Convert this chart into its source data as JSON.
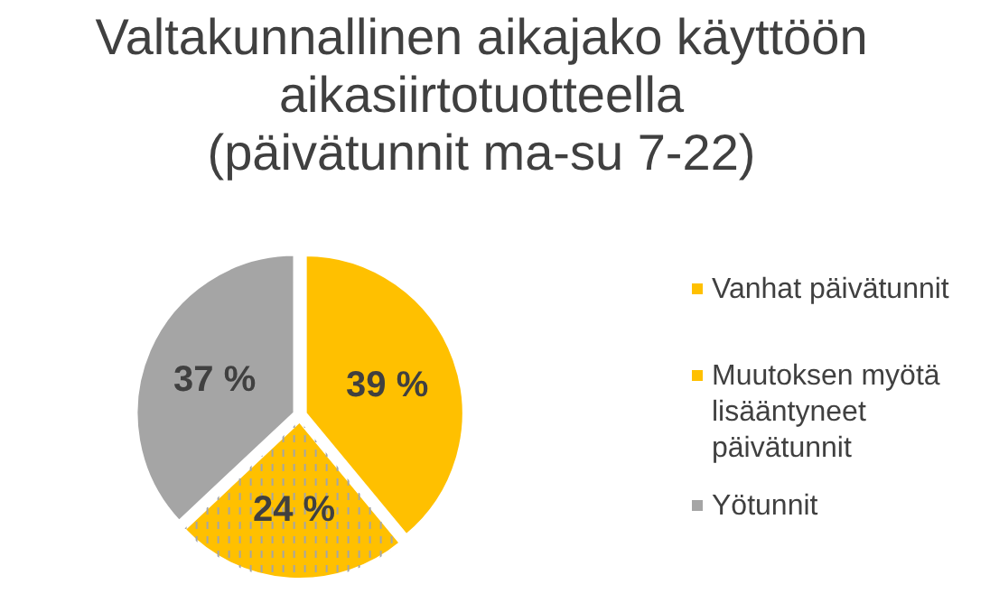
{
  "chart_data": {
    "type": "pie",
    "title": "Valtakunnallinen aikajako käyttöön aikasiirtotuotteella (päivätunnit ma-su 7-22)",
    "categories": [
      "Vanhat päivätunnit",
      "Muutoksen myötä lisääntyneet päivätunnit",
      "Yötunnit"
    ],
    "values": [
      39,
      24,
      37
    ],
    "colors": [
      "#ffc000",
      "#ffc000",
      "#a5a5a5"
    ],
    "value_labels": [
      "39 %",
      "24 %",
      "37 %"
    ],
    "legend": "right"
  }
}
